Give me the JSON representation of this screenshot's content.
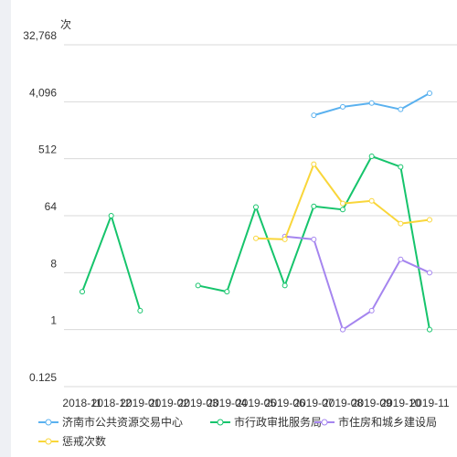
{
  "chart_data": {
    "type": "line",
    "y_unit": "次",
    "y_scale": "log2",
    "ylim": [
      0.125,
      32768
    ],
    "y_ticks": [
      "32,768",
      "4,096",
      "512",
      "64",
      "8",
      "1",
      "0.125"
    ],
    "y_tick_values": [
      32768,
      4096,
      512,
      64,
      8,
      1,
      0.125
    ],
    "categories": [
      "2018-11",
      "2018-12",
      "2019-01",
      "2019-02",
      "2019-03",
      "2019-04",
      "2019-05",
      "2019-06",
      "2019-07",
      "2019-08",
      "2019-09",
      "2019-10",
      "2019-11"
    ],
    "x_tick_labels": [
      "2018-11",
      "2018-12",
      "2019-01",
      "2019-02",
      "2019-03",
      "2019-04",
      "2019-05",
      "2019-06",
      "2019-07",
      "2019-08",
      "2019-09",
      "2019-10",
      "2019-11"
    ],
    "grid": true,
    "legend_position": "bottom",
    "series": [
      {
        "name": "济南市公共资源交易中心",
        "color": "#5ab1ef",
        "values": [
          null,
          null,
          null,
          null,
          null,
          null,
          null,
          null,
          2500,
          3400,
          3900,
          3100,
          5600
        ]
      },
      {
        "name": "市行政审批服务局",
        "color": "#16c46c",
        "values": [
          4,
          64,
          2,
          null,
          5,
          4,
          88,
          5,
          90,
          80,
          560,
          380,
          1
        ]
      },
      {
        "name": "市住房和城乡建设局",
        "color": "#a585ef",
        "values": [
          null,
          null,
          null,
          null,
          null,
          null,
          null,
          30,
          27,
          1,
          2,
          13,
          8
        ]
      },
      {
        "name": "惩戒次数",
        "color": "#f9d63a",
        "values": [
          null,
          null,
          null,
          null,
          null,
          null,
          28,
          27,
          420,
          100,
          110,
          48,
          55
        ]
      }
    ]
  }
}
